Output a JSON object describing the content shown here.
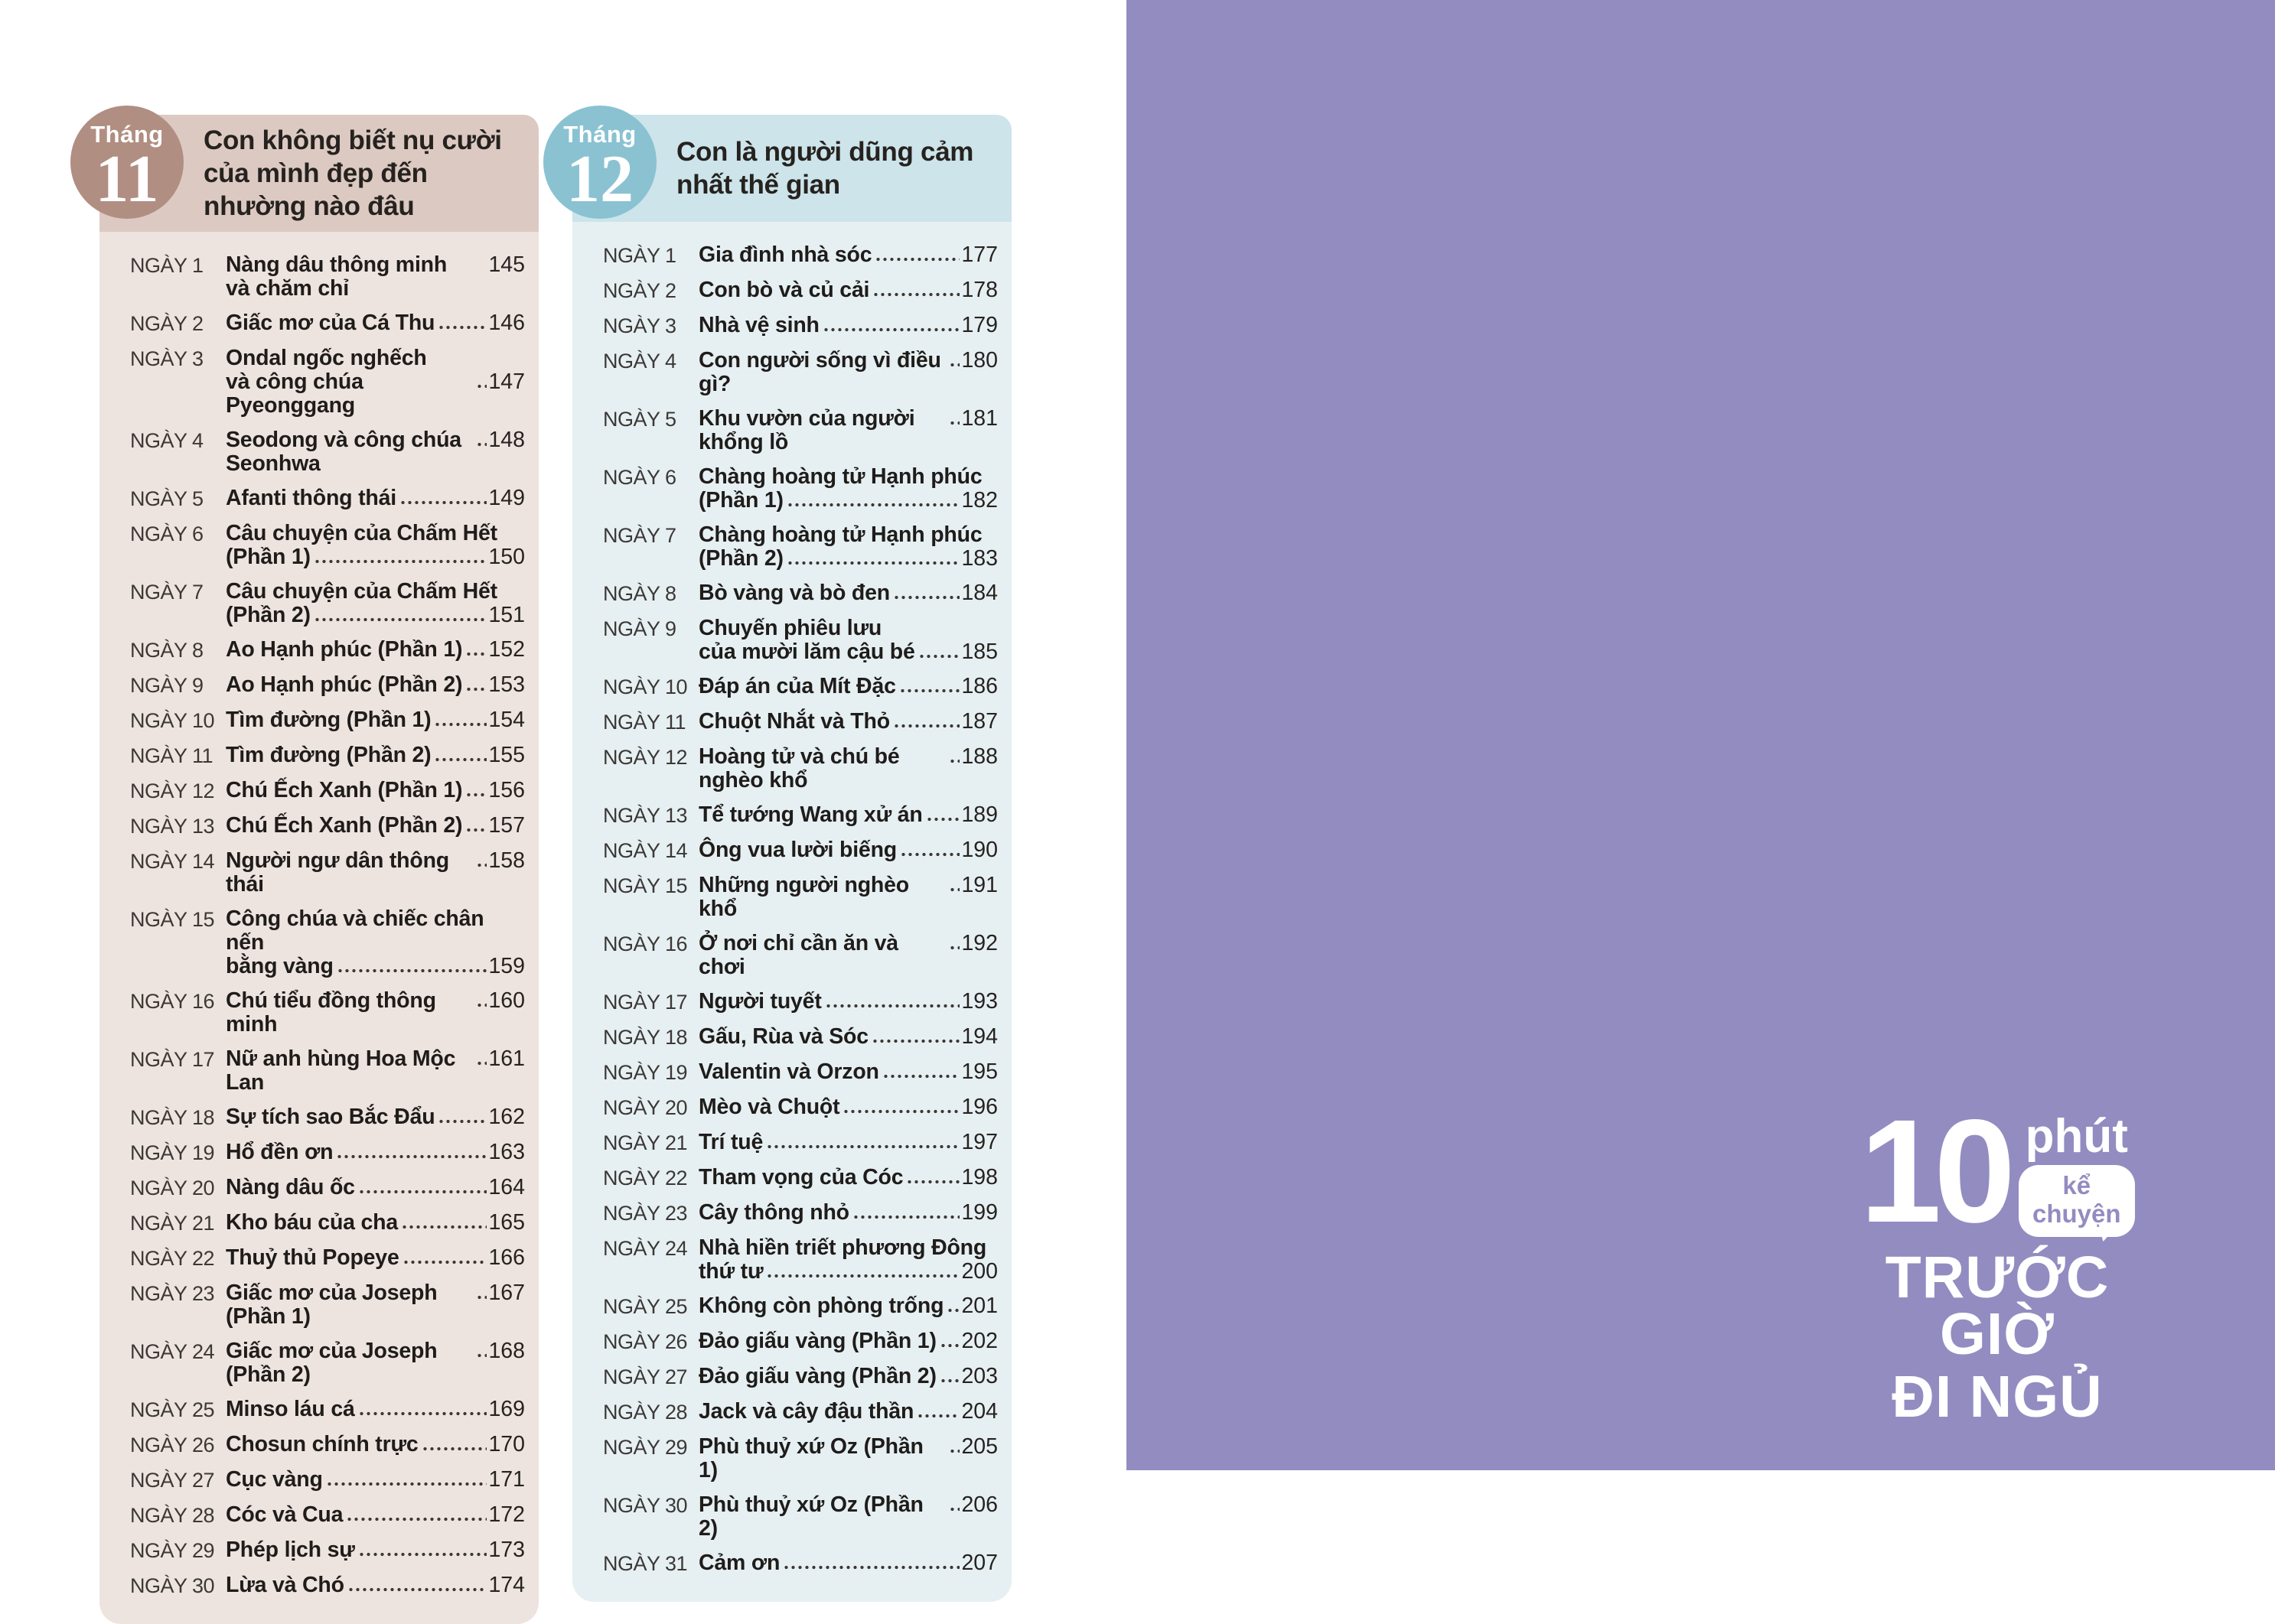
{
  "colors": {
    "purple_panel": "#938cc1",
    "month11_badge": "#b18e82",
    "month11_bar": "#dccac2",
    "month11_panel": "#ede4e0",
    "month12_badge": "#8ac2d2",
    "month12_bar": "#cce4ea",
    "month12_panel": "#e6f0f3",
    "text": "#26221f"
  },
  "months": [
    {
      "id": "11",
      "badge_label": "Tháng",
      "badge_number": "11",
      "title": "Con không biết nụ cười của mình đẹp đến nhường nào đâu",
      "colors": {
        "badge": "#b18e82",
        "header": "#dccac2",
        "panel": "#ede4e0"
      },
      "entries": [
        {
          "day": "NGÀY 1",
          "lines": [
            "Nàng dâu thông minh và chăm chỉ"
          ],
          "page": "145",
          "dots": false
        },
        {
          "day": "NGÀY 2",
          "lines": [
            "Giấc mơ của Cá Thu"
          ],
          "page": "146"
        },
        {
          "day": "NGÀY 3",
          "lines": [
            "Ondal ngốc nghếch",
            "và công chúa Pyeonggang"
          ],
          "page": "147"
        },
        {
          "day": "NGÀY 4",
          "lines": [
            "Seodong và công chúa Seonhwa"
          ],
          "page": "148"
        },
        {
          "day": "NGÀY 5",
          "lines": [
            "Afanti thông thái"
          ],
          "page": "149"
        },
        {
          "day": "NGÀY 6",
          "lines": [
            "Câu chuyện của Chấm Hết",
            "(Phần 1)"
          ],
          "page": "150"
        },
        {
          "day": "NGÀY 7",
          "lines": [
            "Câu chuyện của Chấm Hết",
            "(Phần 2)"
          ],
          "page": "151"
        },
        {
          "day": "NGÀY 8",
          "lines": [
            "Ao Hạnh phúc (Phần 1)"
          ],
          "page": "152"
        },
        {
          "day": "NGÀY 9",
          "lines": [
            "Ao Hạnh phúc (Phần 2)"
          ],
          "page": "153"
        },
        {
          "day": "NGÀY 10",
          "lines": [
            "Tìm đường (Phần 1)"
          ],
          "page": "154"
        },
        {
          "day": "NGÀY 11",
          "lines": [
            "Tìm đường (Phần 2)"
          ],
          "page": "155"
        },
        {
          "day": "NGÀY 12",
          "lines": [
            "Chú Ếch Xanh (Phần 1)"
          ],
          "page": "156"
        },
        {
          "day": "NGÀY 13",
          "lines": [
            "Chú Ếch Xanh (Phần 2)"
          ],
          "page": "157"
        },
        {
          "day": "NGÀY 14",
          "lines": [
            "Người ngư dân thông thái"
          ],
          "page": "158"
        },
        {
          "day": "NGÀY 15",
          "lines": [
            "Công chúa và chiếc chân nến",
            "bằng vàng"
          ],
          "page": "159"
        },
        {
          "day": "NGÀY 16",
          "lines": [
            "Chú tiểu đồng thông minh"
          ],
          "page": "160"
        },
        {
          "day": "NGÀY 17",
          "lines": [
            "Nữ anh hùng Hoa Mộc Lan"
          ],
          "page": "161"
        },
        {
          "day": "NGÀY 18",
          "lines": [
            "Sự tích sao Bắc Đẩu"
          ],
          "page": "162"
        },
        {
          "day": "NGÀY 19",
          "lines": [
            "Hổ đền ơn"
          ],
          "page": "163"
        },
        {
          "day": "NGÀY 20",
          "lines": [
            "Nàng dâu ốc"
          ],
          "page": "164"
        },
        {
          "day": "NGÀY 21",
          "lines": [
            "Kho báu của cha"
          ],
          "page": "165"
        },
        {
          "day": "NGÀY 22",
          "lines": [
            "Thuỷ thủ Popeye"
          ],
          "page": "166"
        },
        {
          "day": "NGÀY 23",
          "lines": [
            "Giấc mơ của Joseph (Phần 1)"
          ],
          "page": "167"
        },
        {
          "day": "NGÀY 24",
          "lines": [
            "Giấc mơ của Joseph (Phần 2)"
          ],
          "page": "168"
        },
        {
          "day": "NGÀY 25",
          "lines": [
            "Minso láu cá"
          ],
          "page": "169"
        },
        {
          "day": "NGÀY 26",
          "lines": [
            "Chosun chính trực"
          ],
          "page": "170"
        },
        {
          "day": "NGÀY 27",
          "lines": [
            "Cục vàng"
          ],
          "page": "171"
        },
        {
          "day": "NGÀY 28",
          "lines": [
            "Cóc và Cua"
          ],
          "page": "172"
        },
        {
          "day": "NGÀY 29",
          "lines": [
            "Phép lịch sự"
          ],
          "page": "173"
        },
        {
          "day": "NGÀY 30",
          "lines": [
            "Lừa và Chó"
          ],
          "page": "174"
        }
      ]
    },
    {
      "id": "12",
      "badge_label": "Tháng",
      "badge_number": "12",
      "title": "Con là người dũng cảm nhất thế gian",
      "colors": {
        "badge": "#8ac2d2",
        "header": "#cce4ea",
        "panel": "#e6f0f3"
      },
      "entries": [
        {
          "day": "NGÀY 1",
          "lines": [
            "Gia đình nhà sóc"
          ],
          "page": "177"
        },
        {
          "day": "NGÀY 2",
          "lines": [
            "Con bò và củ cải"
          ],
          "page": "178"
        },
        {
          "day": "NGÀY 3",
          "lines": [
            "Nhà vệ sinh"
          ],
          "page": "179"
        },
        {
          "day": "NGÀY 4",
          "lines": [
            "Con người sống vì điều gì?"
          ],
          "page": "180"
        },
        {
          "day": "NGÀY 5",
          "lines": [
            "Khu vườn của người khổng lồ"
          ],
          "page": "181"
        },
        {
          "day": "NGÀY 6",
          "lines": [
            "Chàng hoàng tử Hạnh phúc",
            "(Phần 1)"
          ],
          "page": "182"
        },
        {
          "day": "NGÀY 7",
          "lines": [
            "Chàng hoàng tử Hạnh phúc",
            "(Phần 2)"
          ],
          "page": "183"
        },
        {
          "day": "NGÀY 8",
          "lines": [
            "Bò vàng và bò đen"
          ],
          "page": "184"
        },
        {
          "day": "NGÀY 9",
          "lines": [
            "Chuyến phiêu lưu",
            "của mười lăm cậu bé"
          ],
          "page": "185"
        },
        {
          "day": "NGÀY 10",
          "lines": [
            "Đáp án của Mít Đặc"
          ],
          "page": "186"
        },
        {
          "day": "NGÀY 11",
          "lines": [
            "Chuột Nhắt và Thỏ"
          ],
          "page": "187"
        },
        {
          "day": "NGÀY 12",
          "lines": [
            "Hoàng tử và chú bé nghèo khổ"
          ],
          "page": "188"
        },
        {
          "day": "NGÀY 13",
          "lines": [
            "Tể tướng Wang xử án"
          ],
          "page": "189"
        },
        {
          "day": "NGÀY 14",
          "lines": [
            "Ông vua lười biếng"
          ],
          "page": "190"
        },
        {
          "day": "NGÀY 15",
          "lines": [
            "Những người nghèo khổ"
          ],
          "page": "191"
        },
        {
          "day": "NGÀY 16",
          "lines": [
            "Ở nơi chỉ cần ăn và chơi"
          ],
          "page": "192"
        },
        {
          "day": "NGÀY 17",
          "lines": [
            "Người tuyết"
          ],
          "page": "193"
        },
        {
          "day": "NGÀY 18",
          "lines": [
            "Gấu, Rùa và Sóc"
          ],
          "page": "194"
        },
        {
          "day": "NGÀY 19",
          "lines": [
            "Valentin và Orzon"
          ],
          "page": "195"
        },
        {
          "day": "NGÀY 20",
          "lines": [
            "Mèo và Chuột"
          ],
          "page": "196"
        },
        {
          "day": "NGÀY 21",
          "lines": [
            "Trí tuệ"
          ],
          "page": "197"
        },
        {
          "day": "NGÀY 22",
          "lines": [
            "Tham vọng của Cóc"
          ],
          "page": "198"
        },
        {
          "day": "NGÀY 23",
          "lines": [
            "Cây thông nhỏ"
          ],
          "page": "199"
        },
        {
          "day": "NGÀY 24",
          "lines": [
            "Nhà hiền triết phương Đông",
            "thứ tư"
          ],
          "page": "200"
        },
        {
          "day": "NGÀY 25",
          "lines": [
            "Không còn phòng trống"
          ],
          "page": "201"
        },
        {
          "day": "NGÀY 26",
          "lines": [
            "Đảo giấu vàng (Phần 1)"
          ],
          "page": "202"
        },
        {
          "day": "NGÀY 27",
          "lines": [
            "Đảo giấu vàng (Phần 2)"
          ],
          "page": "203"
        },
        {
          "day": "NGÀY 28",
          "lines": [
            "Jack và cây đậu thần"
          ],
          "page": "204"
        },
        {
          "day": "NGÀY 29",
          "lines": [
            "Phù thuỷ xứ Oz (Phần 1)"
          ],
          "page": "205"
        },
        {
          "day": "NGÀY 30",
          "lines": [
            "Phù thuỷ xứ Oz (Phần 2)"
          ],
          "page": "206"
        },
        {
          "day": "NGÀY 31",
          "lines": [
            "Cảm ơn"
          ],
          "page": "207"
        }
      ]
    }
  ],
  "logo": {
    "number": "10",
    "word": "phút",
    "bubble_line1": "kể",
    "bubble_line2": "chuyện",
    "line2": "TRƯỚC GIỜ",
    "line3": "ĐI NGỦ"
  }
}
